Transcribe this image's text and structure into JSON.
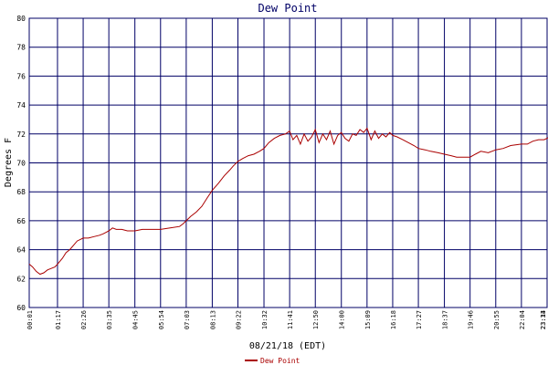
{
  "colors": {
    "background": "#ffffff",
    "grid": "#000066",
    "frame": "#000066",
    "series": "#aa0000",
    "title": "#000066",
    "text": "#000000"
  },
  "chart_data": {
    "type": "line",
    "title": "Dew Point",
    "xlabel": "08/21/18 (EDT)",
    "ylabel": "Degrees F",
    "ylim": [
      60,
      80
    ],
    "yticks": [
      60,
      62,
      64,
      66,
      68,
      70,
      72,
      74,
      76,
      78,
      80
    ],
    "xlim": [
      "00:01",
      "23:13"
    ],
    "xticks": [
      "00:01",
      "01:17",
      "02:26",
      "03:35",
      "04:45",
      "05:54",
      "07:03",
      "08:13",
      "09:22",
      "10:32",
      "11:41",
      "12:50",
      "14:00",
      "15:09",
      "16:18",
      "17:27",
      "18:37",
      "19:46",
      "20:55",
      "22:04",
      "23:13",
      "23:34"
    ],
    "grid": true,
    "legend": {
      "position": "bottom-center",
      "entries": [
        "Dew Point"
      ]
    },
    "series": [
      {
        "name": "Dew Point",
        "x": [
          "00:01",
          "00:10",
          "00:20",
          "00:30",
          "00:40",
          "00:50",
          "01:00",
          "01:10",
          "01:17",
          "01:30",
          "01:40",
          "01:50",
          "02:00",
          "02:10",
          "02:26",
          "02:40",
          "02:55",
          "03:10",
          "03:20",
          "03:35",
          "03:45",
          "03:55",
          "04:10",
          "04:25",
          "04:45",
          "05:05",
          "05:25",
          "05:54",
          "06:20",
          "06:45",
          "06:55",
          "07:03",
          "07:15",
          "07:30",
          "07:45",
          "08:00",
          "08:13",
          "08:30",
          "08:45",
          "09:00",
          "09:10",
          "09:22",
          "09:35",
          "09:50",
          "10:05",
          "10:20",
          "10:32",
          "10:45",
          "11:00",
          "11:15",
          "11:30",
          "11:41",
          "11:50",
          "12:00",
          "12:10",
          "12:20",
          "12:30",
          "12:40",
          "12:50",
          "13:00",
          "13:10",
          "13:20",
          "13:30",
          "13:40",
          "13:50",
          "14:00",
          "14:10",
          "14:20",
          "14:30",
          "14:40",
          "14:50",
          "15:00",
          "15:09",
          "15:20",
          "15:30",
          "15:40",
          "15:50",
          "16:00",
          "16:10",
          "16:18",
          "16:30",
          "16:45",
          "17:00",
          "17:15",
          "17:27",
          "17:45",
          "18:00",
          "18:20",
          "18:37",
          "18:55",
          "19:10",
          "19:25",
          "19:46",
          "20:00",
          "20:15",
          "20:35",
          "20:55",
          "21:15",
          "21:35",
          "22:04",
          "22:20",
          "22:35",
          "22:50",
          "23:05",
          "23:13",
          "23:25",
          "23:34"
        ],
        "y": [
          63.0,
          62.8,
          62.5,
          62.3,
          62.4,
          62.6,
          62.7,
          62.8,
          63.0,
          63.4,
          63.8,
          64.0,
          64.3,
          64.6,
          64.8,
          64.8,
          64.9,
          65.0,
          65.1,
          65.3,
          65.5,
          65.4,
          65.4,
          65.3,
          65.3,
          65.4,
          65.4,
          65.4,
          65.5,
          65.6,
          65.8,
          66.0,
          66.3,
          66.6,
          67.0,
          67.6,
          68.1,
          68.6,
          69.1,
          69.5,
          69.8,
          70.1,
          70.3,
          70.5,
          70.6,
          70.8,
          71.0,
          71.4,
          71.7,
          71.9,
          72.0,
          72.2,
          71.6,
          71.9,
          71.3,
          72.0,
          71.5,
          71.8,
          72.3,
          71.4,
          72.0,
          71.6,
          72.2,
          71.3,
          71.9,
          72.1,
          71.7,
          71.5,
          72.0,
          71.9,
          72.3,
          72.1,
          72.4,
          71.6,
          72.2,
          71.7,
          72.0,
          71.8,
          72.1,
          71.9,
          71.8,
          71.6,
          71.4,
          71.2,
          71.0,
          70.9,
          70.8,
          70.7,
          70.6,
          70.5,
          70.4,
          70.4,
          70.4,
          70.6,
          70.8,
          70.7,
          70.9,
          71.0,
          71.2,
          71.3,
          71.3,
          71.5,
          71.6,
          71.6,
          71.7,
          71.9,
          72.1
        ]
      }
    ]
  }
}
